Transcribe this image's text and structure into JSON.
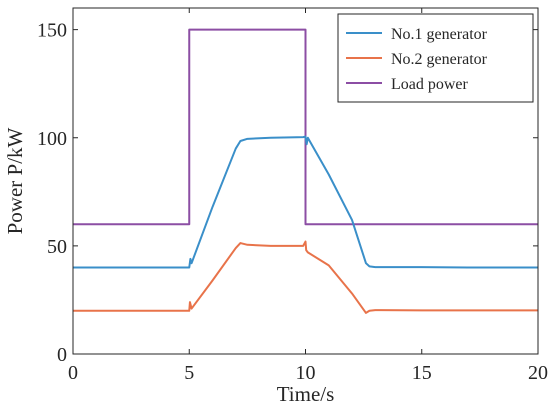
{
  "chart_data": {
    "type": "line",
    "title": "",
    "xlabel": "Time/s",
    "ylabel": "Power P/kW",
    "xlim": [
      0,
      20
    ],
    "ylim": [
      0,
      160
    ],
    "xticks": [
      0,
      5,
      10,
      15,
      20
    ],
    "yticks": [
      0,
      50,
      100,
      150
    ],
    "grid": false,
    "legend_position": "top-right",
    "series": [
      {
        "name": "No.1 generator",
        "color": "#3a8fc9",
        "x": [
          0,
          4.95,
          5.0,
          5.05,
          5.1,
          6.0,
          7.0,
          7.2,
          7.5,
          8.5,
          9.9,
          10.0,
          10.05,
          10.1,
          11.0,
          12.0,
          12.6,
          12.75,
          13.0,
          14.0,
          15.0,
          17.0,
          20.0
        ],
        "y": [
          40,
          40,
          40,
          44,
          42,
          68,
          95,
          98.5,
          99.5,
          100,
          100.3,
          100.5,
          97,
          100,
          83,
          62,
          42,
          40.5,
          40.2,
          40.2,
          40.2,
          40,
          40
        ]
      },
      {
        "name": "No.2 generator",
        "color": "#e8734a",
        "x": [
          0,
          4.95,
          5.0,
          5.03,
          5.1,
          6.0,
          7.0,
          7.2,
          7.5,
          8.5,
          9.9,
          10.0,
          10.03,
          10.1,
          11.0,
          12.0,
          12.6,
          12.75,
          13.0,
          15.0,
          20.0
        ],
        "y": [
          20,
          20,
          20,
          24,
          21,
          34,
          49,
          51.3,
          50.5,
          50,
          50,
          52,
          48,
          47,
          41,
          28,
          19,
          20,
          20.3,
          20.2,
          20.2
        ]
      },
      {
        "name": "Load power",
        "color": "#8c4ea4",
        "x": [
          0,
          5,
          5,
          10,
          10,
          20
        ],
        "y": [
          60,
          60,
          150,
          150,
          60,
          60
        ]
      }
    ]
  }
}
